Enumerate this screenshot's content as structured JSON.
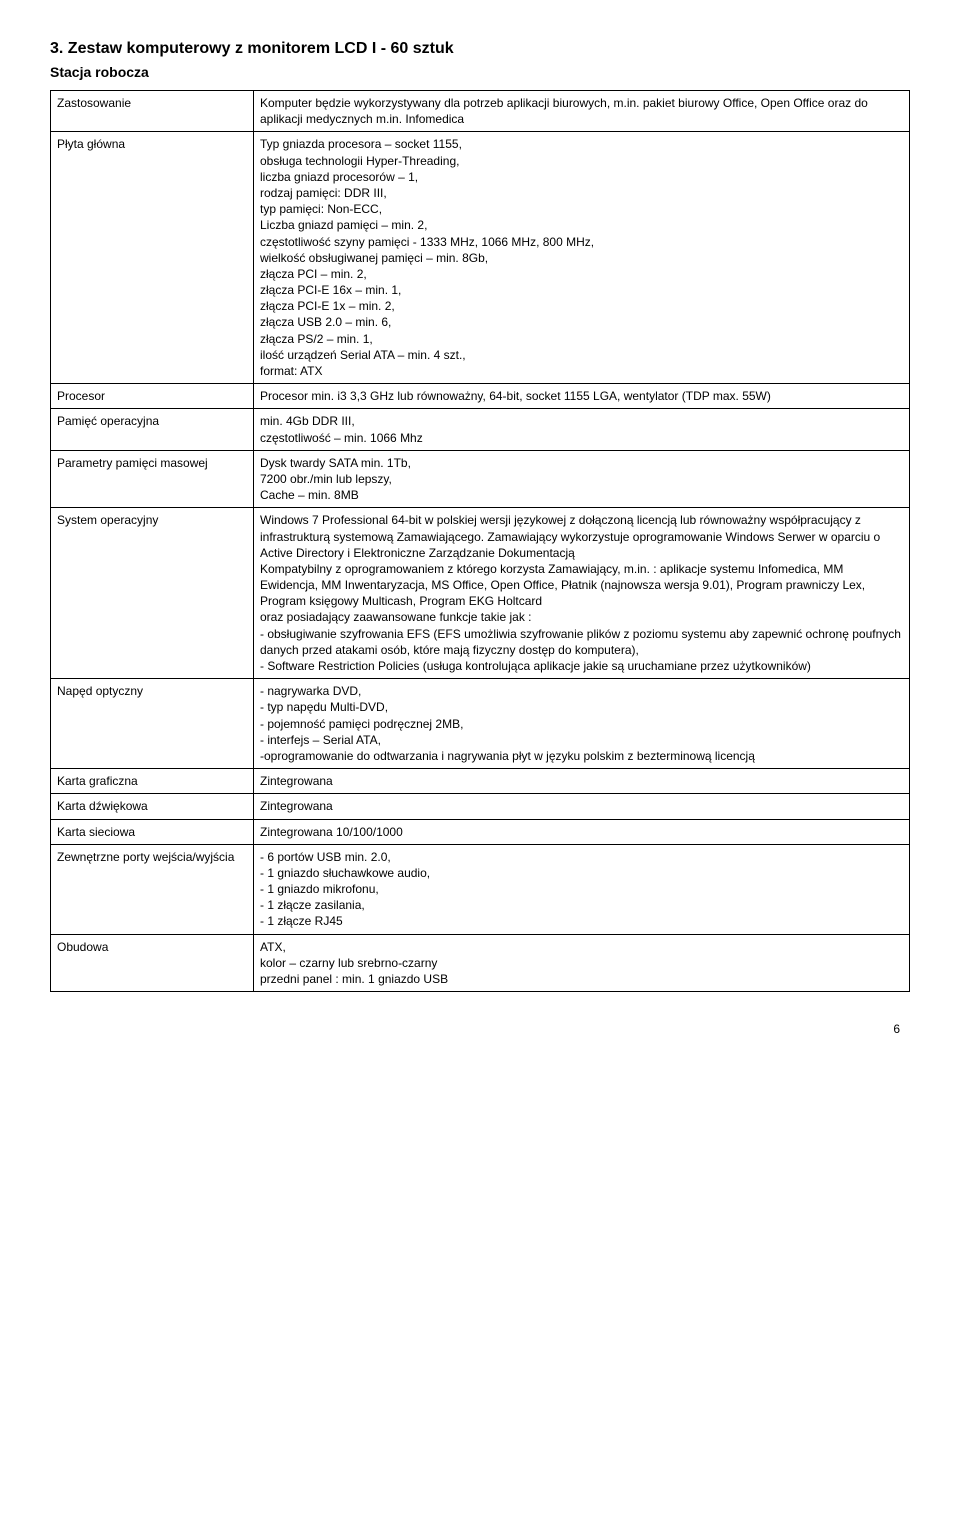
{
  "title": "3.    Zestaw komputerowy z monitorem LCD  I    -       60 sztuk",
  "subtitle": "Stacja robocza",
  "pageNumber": "6",
  "rows": [
    {
      "label": "Zastosowanie",
      "value": "Komputer będzie wykorzystywany dla potrzeb aplikacji biurowych, m.in. pakiet biurowy Office, Open Office oraz do aplikacji medycznych m.in. Infomedica"
    },
    {
      "label": "Płyta główna",
      "value": "Typ gniazda procesora – socket 1155,\nobsługa technologii Hyper-Threading,\nliczba gniazd procesorów – 1,\nrodzaj pamięci: DDR III,\ntyp pamięci: Non-ECC,\nLiczba gniazd pamięci – min. 2,\nczęstotliwość szyny pamięci - 1333 MHz, 1066 MHz, 800 MHz,\nwielkość obsługiwanej pamięci – min. 8Gb,\nzłącza PCI – min. 2,\nzłącza PCI-E 16x – min. 1,\nzłącza PCI-E 1x – min. 2,\nzłącza USB 2.0 – min. 6,\nzłącza PS/2 – min. 1,\nilość urządzeń Serial ATA – min. 4 szt.,\nformat: ATX"
    },
    {
      "label": "Procesor",
      "value": "Procesor min. i3 3,3 GHz lub równoważny, 64-bit, socket 1155 LGA, wentylator (TDP max. 55W)"
    },
    {
      "label": "Pamięć operacyjna",
      "value": "min. 4Gb DDR III,\nczęstotliwość – min. 1066 Mhz"
    },
    {
      "label": "Parametry pamięci masowej",
      "value": "Dysk twardy SATA min. 1Tb,\n7200 obr./min lub lepszy,\nCache – min. 8MB"
    },
    {
      "label": "System operacyjny",
      "value": "Windows 7 Professional 64-bit w polskiej wersji językowej z dołączoną licencją lub równoważny współpracujący z infrastrukturą systemową Zamawiającego. Zamawiający wykorzystuje oprogramowanie Windows Serwer w oparciu o Active Directory i Elektroniczne Zarządzanie Dokumentacją\nKompatybilny z oprogramowaniem z którego korzysta Zamawiający, m.in. : aplikacje systemu Infomedica, MM Ewidencja, MM Inwentaryzacja, MS Office, Open Office, Płatnik (najnowsza wersja 9.01), Program prawniczy Lex, Program księgowy Multicash, Program EKG Holtcard\noraz posiadający zaawansowane funkcje takie jak :\n- obsługiwanie szyfrowania EFS (EFS umożliwia szyfrowanie plików z poziomu systemu aby zapewnić ochronę poufnych danych przed atakami osób, które mają fizyczny dostęp do komputera),\n- Software Restriction Policies (usługa kontrolująca aplikacje jakie są uruchamiane przez użytkowników)"
    },
    {
      "label": "Napęd optyczny",
      "value": "- nagrywarka DVD,\n- typ napędu Multi-DVD,\n- pojemność pamięci podręcznej 2MB,\n- interfejs – Serial ATA,\n-oprogramowanie do odtwarzania i nagrywania płyt w języku polskim z bezterminową licencją"
    },
    {
      "label": "Karta graficzna",
      "value": "Zintegrowana"
    },
    {
      "label": "Karta dźwiękowa",
      "value": "Zintegrowana"
    },
    {
      "label": "Karta sieciowa",
      "value": "Zintegrowana 10/100/1000"
    },
    {
      "label": "Zewnętrzne porty wejścia/wyjścia",
      "value": "- 6 portów USB min. 2.0,\n- 1 gniazdo słuchawkowe audio,\n- 1 gniazdo mikrofonu,\n- 1 złącze zasilania,\n- 1 złącze RJ45"
    },
    {
      "label": "Obudowa",
      "value": "ATX,\nkolor – czarny lub srebrno-czarny\nprzedni panel : min. 1 gniazdo USB"
    }
  ]
}
